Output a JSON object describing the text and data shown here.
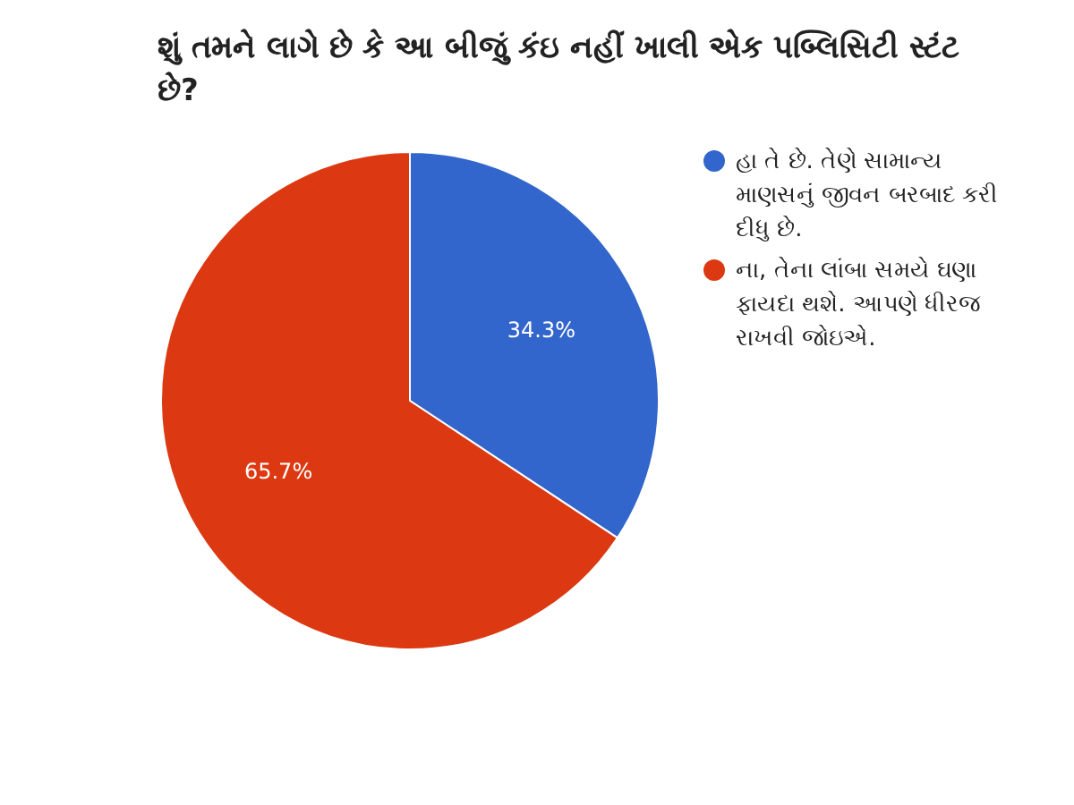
{
  "chart_data": {
    "type": "pie",
    "title": "શું તમને લાગે છે કે આ બીજું કંઇ નહીં ખાલી એક પબ્લિસિટી સ્ટંટ છે?",
    "categories": [
      "હા તે છે. તેણે સામાન્ય માણસનું જીવન બરબાદ કરી દીધુ છે.",
      "ના, તેના લાંબા સમયે ઘણા ફાયદા થશે. આપણે ધીરજ રાખવી જોઇએ."
    ],
    "values": [
      34.3,
      65.7
    ],
    "colors": [
      "#3366cc",
      "#dc3912"
    ],
    "value_labels": [
      "34.3%",
      "65.7%"
    ],
    "legend": "right"
  }
}
